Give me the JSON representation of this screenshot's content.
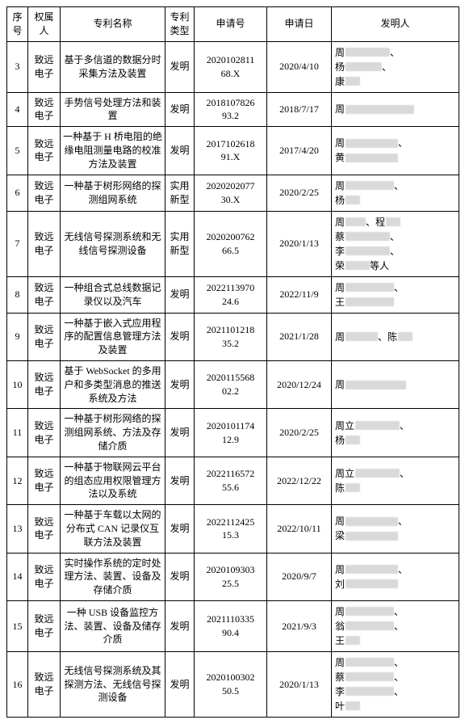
{
  "headers": [
    "序号",
    "权属人",
    "专利名称",
    "专利类型",
    "申请号",
    "申请日",
    "发明人"
  ],
  "rows": [
    {
      "no": "3",
      "owner": "致远电子",
      "name": "基于多信道的数据分时采集方法及装置",
      "ptype": "发明",
      "appno": "2020102811\n68.X",
      "appdate": "2020/4/10",
      "inv": [
        [
          "周",
          55,
          "、"
        ],
        [
          "杨",
          45,
          "、"
        ],
        [
          "",
          0,
          ""
        ],
        [
          "康",
          18,
          ""
        ]
      ]
    },
    {
      "no": "4",
      "owner": "致远电子",
      "name": "手势信号处理方法和装置",
      "ptype": "发明",
      "appno": "2018107826\n93.2",
      "appdate": "2018/7/17",
      "inv": [
        [
          "周",
          85,
          ""
        ]
      ]
    },
    {
      "no": "5",
      "owner": "致远电子",
      "name": "一种基于 H 桥电阻的绝缘电阻测量电路的校准方法及装置",
      "ptype": "发明",
      "appno": "2017102618\n91.X",
      "appdate": "2017/4/20",
      "inv": [
        [
          "周",
          65,
          "、"
        ],
        [
          "黄",
          65,
          ""
        ]
      ]
    },
    {
      "no": "6",
      "owner": "致远电子",
      "name": "一种基于树形网络的探测组网系统",
      "ptype": "实用新型",
      "appno": "2020202077\n30.X",
      "appdate": "2020/2/25",
      "inv": [
        [
          "周",
          60,
          "、"
        ],
        [
          "杨",
          18,
          ""
        ]
      ]
    },
    {
      "no": "7",
      "owner": "致远电子",
      "name": "无线信号探测系统和无线信号探测设备",
      "ptype": "实用新型",
      "appno": "2020200762\n66.5",
      "appdate": "2020/1/13",
      "inv": [
        [
          "周",
          25,
          "、程",
          true
        ],
        [
          "蔡",
          55,
          "、"
        ],
        [
          "李",
          55,
          "、"
        ],
        [
          "荣",
          30,
          "等人"
        ]
      ]
    },
    {
      "no": "8",
      "owner": "致远电子",
      "name": "一种组合式总线数据记录仪以及汽车",
      "ptype": "发明",
      "appno": "2022113970\n24.6",
      "appdate": "2022/11/9",
      "inv": [
        [
          "周",
          60,
          "、"
        ],
        [
          "王",
          60,
          ""
        ]
      ]
    },
    {
      "no": "9",
      "owner": "致远电子",
      "name": "一种基于嵌入式应用程序的配置信息管理方法及装置",
      "ptype": "发明",
      "appno": "2021101218\n35.2",
      "appdate": "2021/1/28",
      "inv": [
        [
          "周",
          40,
          "、陈",
          true
        ]
      ]
    },
    {
      "no": "10",
      "owner": "致远电子",
      "name": "基于 WebSocket 的多用户和多类型消息的推送系统及方法",
      "ptype": "发明",
      "appno": "2020115568\n02.2",
      "appdate": "2020/12/24",
      "inv": [
        [
          "周",
          75,
          ""
        ]
      ]
    },
    {
      "no": "11",
      "owner": "致远电子",
      "name": "一种基于树形网络的探测组网系统、方法及存储介质",
      "ptype": "发明",
      "appno": "2020101174\n12.9",
      "appdate": "2020/2/25",
      "inv": [
        [
          "周立",
          55,
          "、"
        ],
        [
          "杨",
          18,
          ""
        ]
      ]
    },
    {
      "no": "12",
      "owner": "致远电子",
      "name": "一种基于物联网云平台的组态应用权限管理方法以及系统",
      "ptype": "发明",
      "appno": "2022116572\n55.6",
      "appdate": "2022/12/22",
      "inv": [
        [
          "周立",
          55,
          "、"
        ],
        [
          "陈",
          18,
          ""
        ]
      ]
    },
    {
      "no": "13",
      "owner": "致远电子",
      "name": "一种基于车载以太网的分布式 CAN 记录仪互联方法及装置",
      "ptype": "发明",
      "appno": "2022112425\n15.3",
      "appdate": "2022/10/11",
      "inv": [
        [
          "周",
          65,
          "、"
        ],
        [
          "梁",
          65,
          ""
        ]
      ]
    },
    {
      "no": "14",
      "owner": "致远电子",
      "name": "实时操作系统的定时处理方法、装置、设备及存储介质",
      "ptype": "发明",
      "appno": "2020109303\n25.5",
      "appdate": "2020/9/7",
      "inv": [
        [
          "周",
          65,
          "、"
        ],
        [
          "刘",
          65,
          ""
        ]
      ]
    },
    {
      "no": "15",
      "owner": "致远电子",
      "name": "一种 USB 设备监控方法、装置、设备及储存介质",
      "ptype": "发明",
      "appno": "2021110335\n90.4",
      "appdate": "2021/9/3",
      "inv": [
        [
          "周",
          60,
          "、"
        ],
        [
          "翁",
          60,
          "、"
        ],
        [
          "王",
          18,
          ""
        ]
      ]
    },
    {
      "no": "16",
      "owner": "致远电子",
      "name": "无线信号探测系统及其探测方法、无线信号探测设备",
      "ptype": "发明",
      "appno": "2020100302\n50.5",
      "appdate": "2020/1/13",
      "inv": [
        [
          "周",
          60,
          "、"
        ],
        [
          "蔡",
          60,
          "、"
        ],
        [
          "李",
          60,
          "、"
        ],
        [
          "叶",
          18,
          ""
        ]
      ]
    }
  ]
}
